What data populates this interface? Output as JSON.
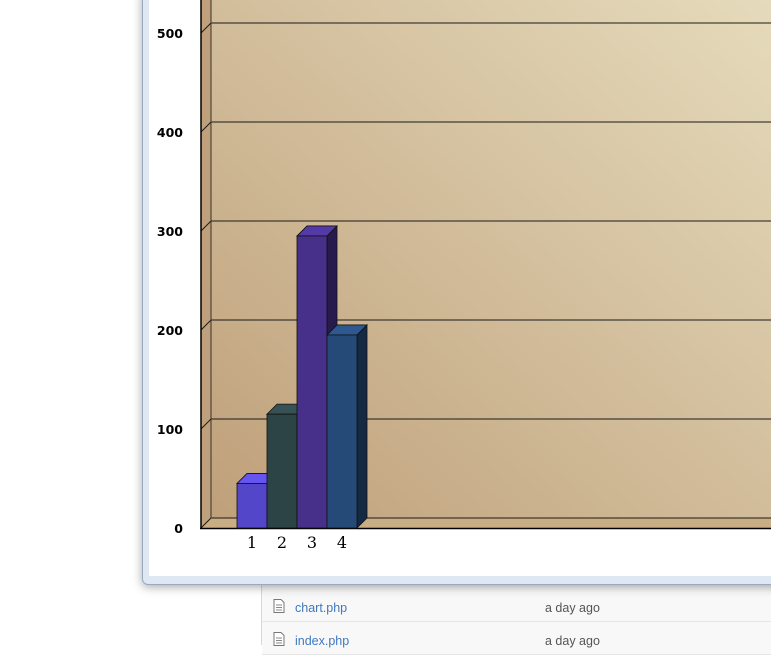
{
  "chart_data": {
    "type": "bar",
    "categories": [
      "1",
      "2",
      "3",
      "4"
    ],
    "values": [
      45,
      115,
      295,
      195
    ],
    "y_ticks": [
      "0",
      "100",
      "200",
      "300",
      "400",
      "500"
    ],
    "ylim": [
      0,
      500
    ],
    "grid": true,
    "colors": [
      "#5346c8",
      "#2d4446",
      "#46308a",
      "#264a78"
    ],
    "background": [
      "#bfa07a",
      "#e6dcbd"
    ]
  },
  "files": [
    {
      "name": "chart.php",
      "age": "a day ago"
    },
    {
      "name": "index.php",
      "age": "a day ago"
    }
  ]
}
